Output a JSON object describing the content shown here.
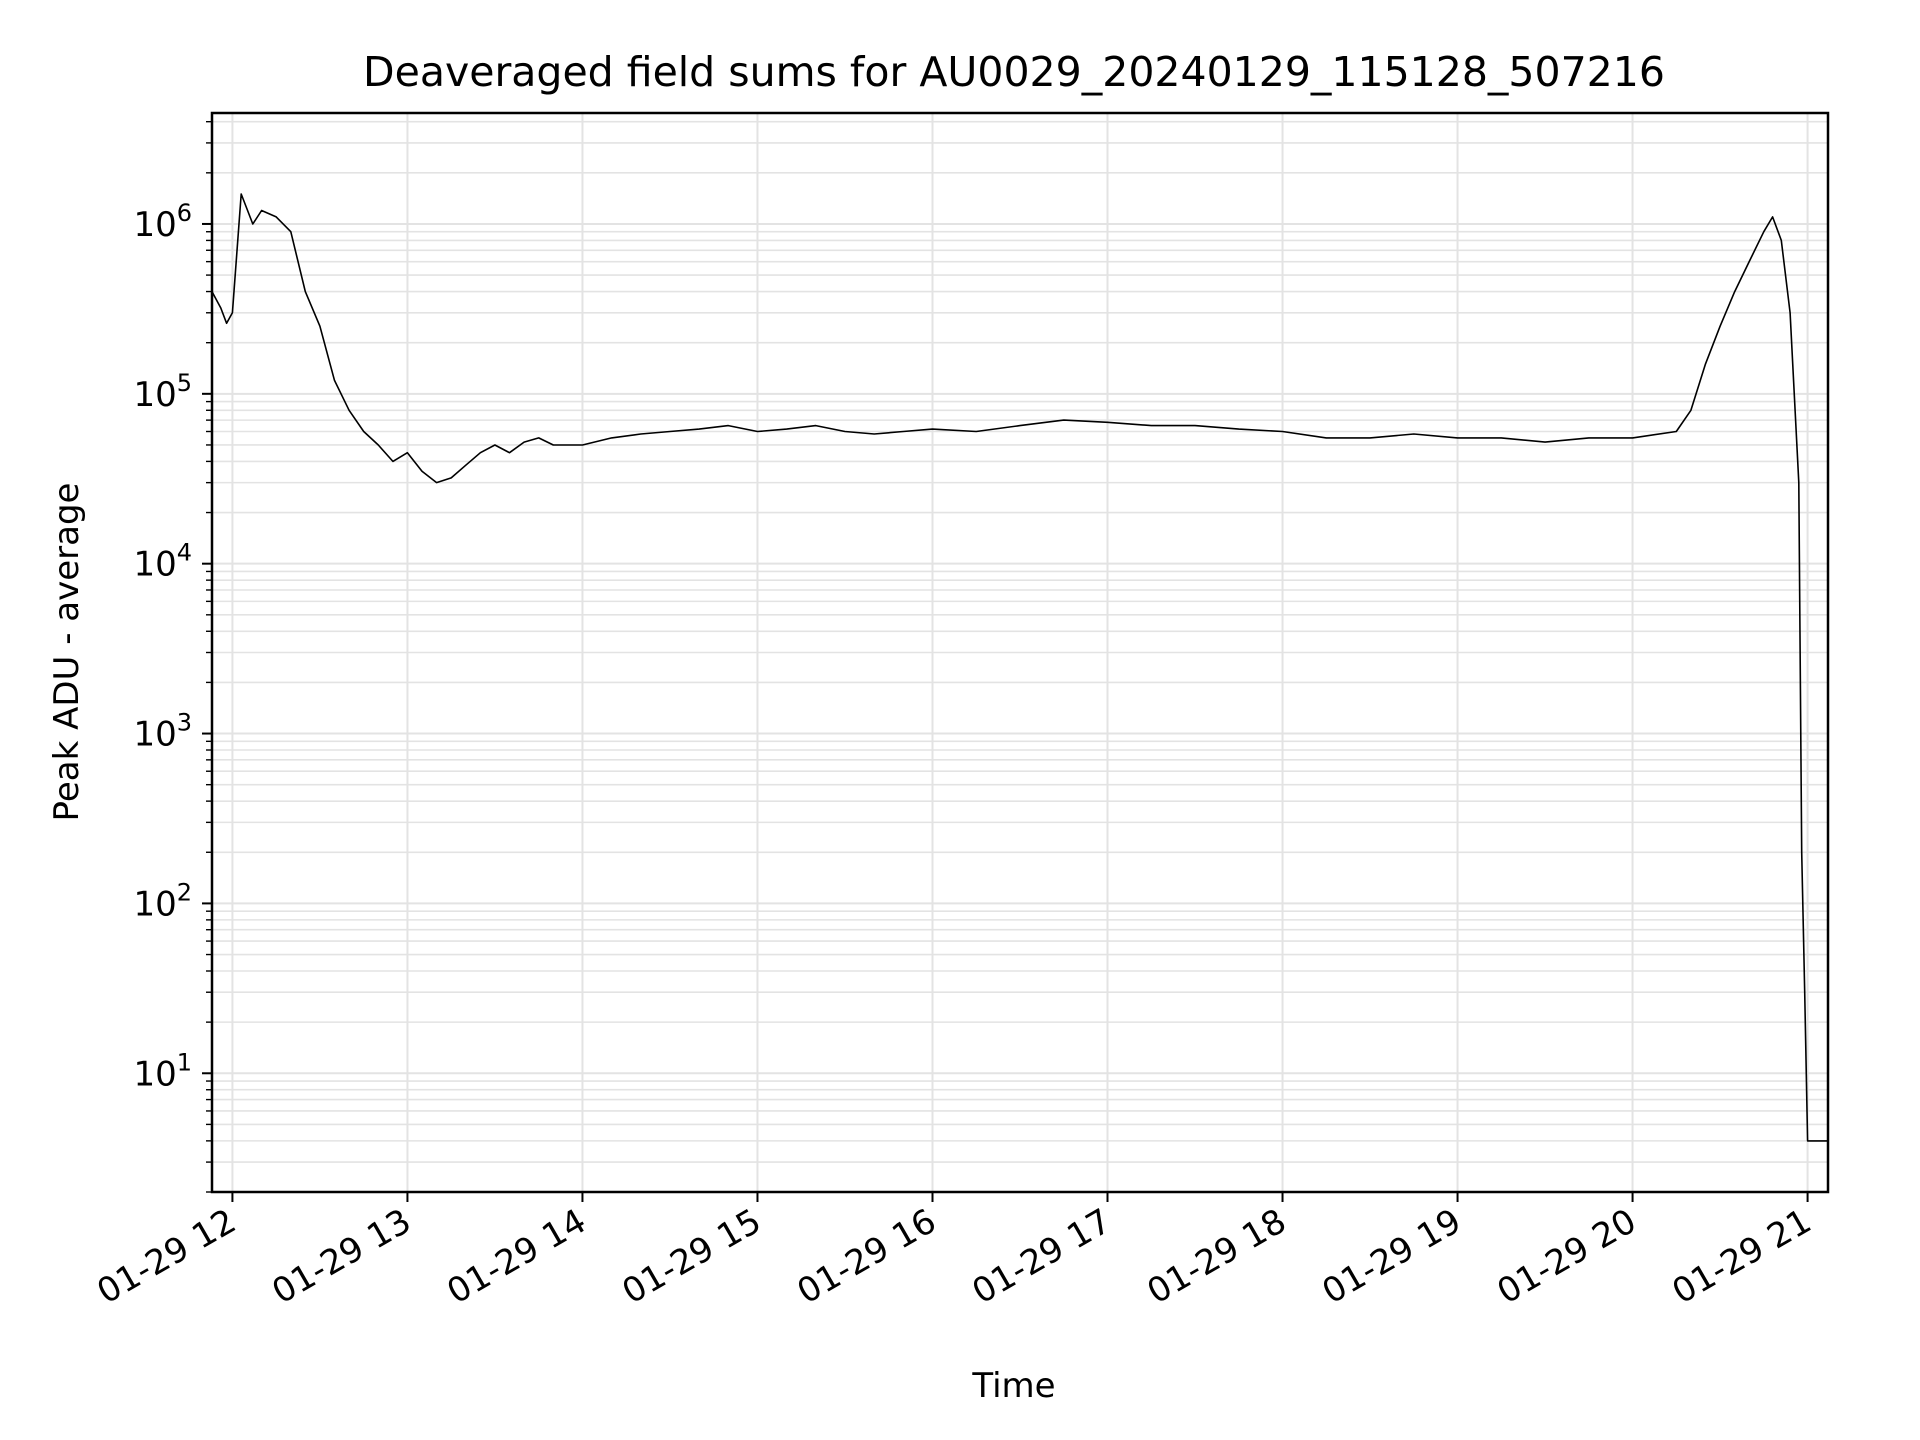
{
  "chart_data": {
    "type": "line",
    "title": "Deaveraged field sums for AU0029_20240129_115128_507216",
    "xlabel": "Time",
    "ylabel": "Peak ADU - average",
    "xscale": "time",
    "yscale": "log",
    "xlim": [
      "01-29 11:53",
      "01-29 21:07"
    ],
    "ylim": [
      2,
      4500000
    ],
    "xticks": [
      "01-29 12",
      "01-29 13",
      "01-29 14",
      "01-29 15",
      "01-29 16",
      "01-29 17",
      "01-29 18",
      "01-29 19",
      "01-29 20",
      "01-29 21"
    ],
    "yticks": [
      "10^1",
      "10^2",
      "10^3",
      "10^4",
      "10^5",
      "10^6"
    ],
    "grid": true,
    "legend": "none",
    "line_color": "#000000",
    "series": [
      {
        "x": [
          "01-29 11:53",
          "01-29 11:56",
          "01-29 11:58",
          "01-29 12:00",
          "01-29 12:03",
          "01-29 12:07",
          "01-29 12:10",
          "01-29 12:15",
          "01-29 12:20",
          "01-29 12:25",
          "01-29 12:30",
          "01-29 12:35",
          "01-29 12:40",
          "01-29 12:45",
          "01-29 12:50",
          "01-29 12:55",
          "01-29 13:00",
          "01-29 13:05",
          "01-29 13:10",
          "01-29 13:15",
          "01-29 13:20",
          "01-29 13:25",
          "01-29 13:30",
          "01-29 13:35",
          "01-29 13:40",
          "01-29 13:45",
          "01-29 13:50",
          "01-29 14:00",
          "01-29 14:10",
          "01-29 14:20",
          "01-29 14:30",
          "01-29 14:40",
          "01-29 14:50",
          "01-29 15:00",
          "01-29 15:10",
          "01-29 15:20",
          "01-29 15:30",
          "01-29 15:40",
          "01-29 15:50",
          "01-29 16:00",
          "01-29 16:15",
          "01-29 16:30",
          "01-29 16:45",
          "01-29 17:00",
          "01-29 17:15",
          "01-29 17:30",
          "01-29 17:45",
          "01-29 18:00",
          "01-29 18:15",
          "01-29 18:30",
          "01-29 18:45",
          "01-29 19:00",
          "01-29 19:15",
          "01-29 19:30",
          "01-29 19:45",
          "01-29 20:00",
          "01-29 20:15",
          "01-29 20:20",
          "01-29 20:25",
          "01-29 20:30",
          "01-29 20:35",
          "01-29 20:40",
          "01-29 20:45",
          "01-29 20:48",
          "01-29 20:51",
          "01-29 20:54",
          "01-29 20:57",
          "01-29 20:58",
          "01-29 20:59",
          "01-29 21:00",
          "01-29 21:03",
          "01-29 21:07"
        ],
        "y": [
          400000,
          320000,
          260000,
          300000,
          1500000,
          1000000,
          1200000,
          1100000,
          900000,
          400000,
          250000,
          120000,
          80000,
          60000,
          50000,
          40000,
          45000,
          35000,
          30000,
          32000,
          38000,
          45000,
          50000,
          45000,
          52000,
          55000,
          50000,
          50000,
          55000,
          58000,
          60000,
          62000,
          65000,
          60000,
          62000,
          65000,
          60000,
          58000,
          60000,
          62000,
          60000,
          65000,
          70000,
          68000,
          65000,
          65000,
          62000,
          60000,
          55000,
          55000,
          58000,
          55000,
          55000,
          52000,
          55000,
          55000,
          60000,
          80000,
          150000,
          250000,
          400000,
          600000,
          900000,
          1100000,
          800000,
          300000,
          30000,
          200,
          30,
          4,
          4,
          4
        ]
      }
    ]
  }
}
